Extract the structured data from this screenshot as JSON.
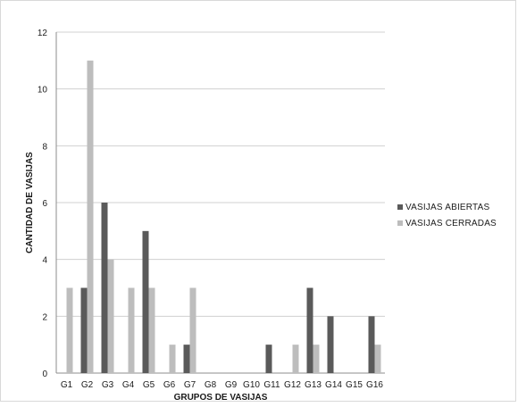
{
  "chart_data": {
    "type": "bar",
    "title": "",
    "xlabel": "GRUPOS DE VASIJAS",
    "ylabel": "CANTIDAD DE VASIJAS",
    "ylim": [
      0,
      12
    ],
    "yticks": [
      0,
      2,
      4,
      6,
      8,
      10,
      12
    ],
    "grid": true,
    "legend_position": "right",
    "categories": [
      "G1",
      "G2",
      "G3",
      "G4",
      "G5",
      "G6",
      "G7",
      "G8",
      "G9",
      "G10",
      "G11",
      "G12",
      "G13",
      "G14",
      "G15",
      "G16"
    ],
    "series": [
      {
        "name": "VASIJAS ABIERTAS",
        "color": "#5a5a5a",
        "values": [
          0,
          3,
          6,
          0,
          5,
          0,
          1,
          0,
          0,
          0,
          1,
          0,
          3,
          2,
          0,
          2
        ]
      },
      {
        "name": "VASIJAS CERRADAS",
        "color": "#bdbdbd",
        "values": [
          3,
          11,
          4,
          3,
          3,
          1,
          3,
          0,
          0,
          0,
          0,
          1,
          1,
          0,
          0,
          1
        ]
      }
    ]
  }
}
